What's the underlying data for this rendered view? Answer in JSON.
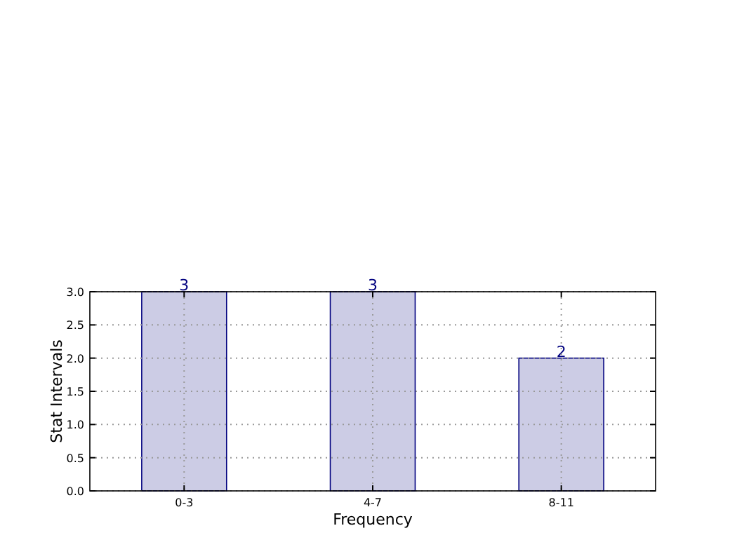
{
  "chart_data": {
    "type": "bar",
    "xlabel": "Frequency",
    "ylabel": "Stat Intervals",
    "categories": [
      "0-3",
      "4-7",
      "8-11"
    ],
    "values": [
      3,
      3,
      2
    ],
    "color": "#cccce5",
    "ylim": [
      0,
      3
    ],
    "yticks": [
      {
        "value": 0,
        "label": "0.0"
      },
      {
        "value": 0.5,
        "label": "0.5"
      },
      {
        "value": 1,
        "label": "1.0"
      },
      {
        "value": 1.5,
        "label": "1.5"
      },
      {
        "value": 2,
        "label": "2.0"
      },
      {
        "value": 2.5,
        "label": "2.5"
      },
      {
        "value": 3,
        "label": "3.0"
      }
    ],
    "grid": true,
    "data_labels": true
  }
}
